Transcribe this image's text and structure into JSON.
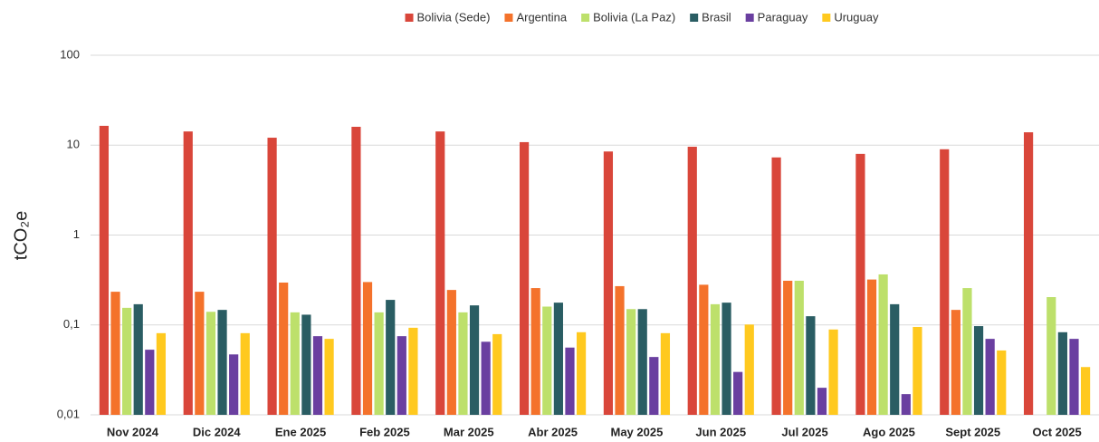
{
  "chart_data": {
    "type": "bar",
    "y_label": "tCO₂e",
    "log": true,
    "grid": true,
    "legend": "top",
    "ylim": [
      0.01,
      100
    ],
    "yticks": [
      {
        "value": 0.01,
        "label": "0,01"
      },
      {
        "value": 0.1,
        "label": "0,1"
      },
      1,
      10,
      100
    ],
    "categories": [
      "Nov 2024",
      "Dic 2024",
      "Ene 2025",
      "Feb 2025",
      "Mar 2025",
      "Abr 2025",
      "May 2025",
      "Jun 2025",
      "Jul 2025",
      "Ago 2025",
      "Sept 2025",
      "Oct 2025"
    ],
    "series": [
      {
        "name": "Bolivia (Sede)",
        "color": "#d9463a",
        "values": [
          16.4,
          14.2,
          12.1,
          16.0,
          14.2,
          10.8,
          8.5,
          9.6,
          7.3,
          8.0,
          9.0,
          13.9
        ]
      },
      {
        "name": "Argentina",
        "color": "#f4722b",
        "values": [
          0.234,
          0.234,
          0.296,
          0.3,
          0.245,
          0.257,
          0.27,
          0.28,
          0.31,
          0.32,
          0.147,
          null
        ]
      },
      {
        "name": "Bolivia (La Paz)",
        "color": "#bde06b",
        "values": [
          0.155,
          0.14,
          0.138,
          0.138,
          0.138,
          0.16,
          0.15,
          0.17,
          0.31,
          0.365,
          0.257,
          0.204
        ]
      },
      {
        "name": "Brasil",
        "color": "#2a5d63",
        "values": [
          0.17,
          0.147,
          0.13,
          0.19,
          0.165,
          0.177,
          0.15,
          0.177,
          0.125,
          0.17,
          0.097,
          0.083
        ]
      },
      {
        "name": "Paraguay",
        "color": "#6a3fa0",
        "values": [
          0.053,
          0.047,
          0.075,
          0.075,
          0.065,
          0.056,
          0.044,
          0.03,
          0.02,
          0.017,
          0.07,
          0.07
        ]
      },
      {
        "name": "Uruguay",
        "color": "#ffc91f",
        "values": [
          0.081,
          0.081,
          0.07,
          0.093,
          0.079,
          0.083,
          0.081,
          0.101,
          0.089,
          0.095,
          0.052,
          0.034
        ]
      }
    ]
  }
}
